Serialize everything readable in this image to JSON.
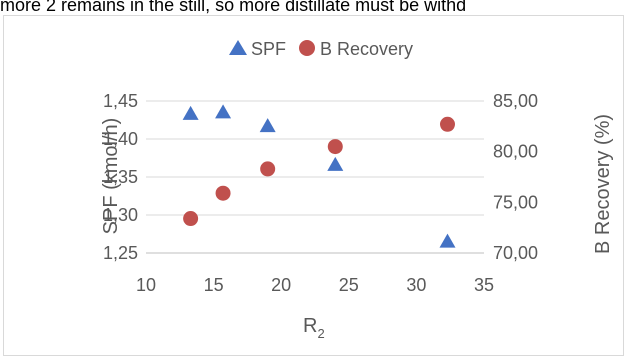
{
  "document": {
    "top_text": "more 2 remains in the still, so more distillate must be withd"
  },
  "chart_data": {
    "type": "scatter",
    "x": [
      13.3,
      15.7,
      19.0,
      24.0,
      32.3
    ],
    "xlabel_main": "R",
    "xlabel_sub": "2",
    "ylabel": "SPF (kmol/h)",
    "y2label": "B Recovery (%)",
    "xlim": [
      10,
      35
    ],
    "ylim": [
      1.25,
      1.45
    ],
    "y2lim": [
      70,
      85
    ],
    "x_ticks": [
      "10",
      "15",
      "20",
      "25",
      "30",
      "35"
    ],
    "y_ticks": [
      "1,25",
      "1,30",
      "1,35",
      "1,40",
      "1,45"
    ],
    "y2_ticks": [
      "70,00",
      "75,00",
      "80,00",
      "85,00"
    ],
    "grid": true,
    "legend_position": "top",
    "series": [
      {
        "name": "SPF",
        "axis": "left",
        "marker": "triangle",
        "color": "#4472c4",
        "values": [
          1.433,
          1.435,
          1.417,
          1.366,
          1.265
        ]
      },
      {
        "name": "B Recovery",
        "axis": "right",
        "marker": "circle",
        "color": "#c0504d",
        "values": [
          73.4,
          75.9,
          78.3,
          80.5,
          82.7
        ]
      }
    ]
  }
}
